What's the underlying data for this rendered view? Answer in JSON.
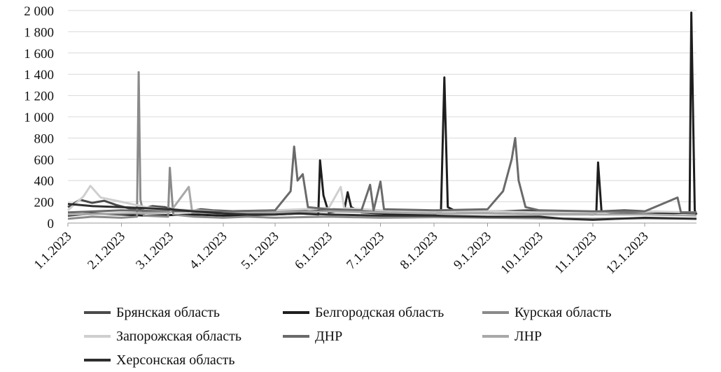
{
  "chart_data": {
    "type": "line",
    "title": "",
    "xlabel": "",
    "ylabel": "",
    "ylim": [
      0,
      2000
    ],
    "yticks": [
      0,
      200,
      400,
      600,
      800,
      1000,
      1200,
      1400,
      1600,
      1800,
      2000
    ],
    "ytick_labels": [
      "0",
      "200",
      "400",
      "600",
      "800",
      "1 000",
      "1 200",
      "1 400",
      "1 600",
      "1 800",
      "2 000"
    ],
    "x_range": [
      "2023-01-01",
      "2023-12-31"
    ],
    "xticks": [
      "2023-01-01",
      "2023-02-01",
      "2023-03-01",
      "2023-04-01",
      "2023-05-01",
      "2023-06-01",
      "2023-07-01",
      "2023-08-01",
      "2023-09-01",
      "2023-10-01",
      "2023-11-01",
      "2023-12-01"
    ],
    "xtick_labels": [
      "1.1.2023",
      "2.1.2023",
      "3.1.2023",
      "4.1.2023",
      "5.1.2023",
      "6.1.2023",
      "7.1.2023",
      "8.1.2023",
      "9.1.2023",
      "10.1.2023",
      "11.1.2023",
      "12.1.2023"
    ],
    "grid": "horizontal",
    "legend_position": "bottom",
    "series": [
      {
        "name": "Брянская область",
        "color": "#4a4a4a",
        "values": [
          [
            "2023-01-01",
            150
          ],
          [
            "2023-01-08",
            220
          ],
          [
            "2023-01-15",
            190
          ],
          [
            "2023-01-22",
            210
          ],
          [
            "2023-01-29",
            170
          ],
          [
            "2023-02-05",
            140
          ],
          [
            "2023-02-12",
            130
          ],
          [
            "2023-02-19",
            160
          ],
          [
            "2023-02-26",
            150
          ],
          [
            "2023-03-05",
            120
          ],
          [
            "2023-03-12",
            110
          ],
          [
            "2023-03-19",
            130
          ],
          [
            "2023-03-26",
            120
          ],
          [
            "2023-04-09",
            110
          ],
          [
            "2023-04-23",
            100
          ],
          [
            "2023-05-07",
            120
          ],
          [
            "2023-05-21",
            110
          ],
          [
            "2023-06-04",
            130
          ],
          [
            "2023-06-18",
            120
          ],
          [
            "2023-07-02",
            110
          ],
          [
            "2023-07-16",
            120
          ],
          [
            "2023-07-30",
            110
          ],
          [
            "2023-08-13",
            120
          ],
          [
            "2023-08-27",
            110
          ],
          [
            "2023-09-10",
            110
          ],
          [
            "2023-09-24",
            120
          ],
          [
            "2023-10-08",
            110
          ],
          [
            "2023-10-22",
            100
          ],
          [
            "2023-11-05",
            110
          ],
          [
            "2023-11-19",
            120
          ],
          [
            "2023-12-03",
            110
          ],
          [
            "2023-12-17",
            100
          ],
          [
            "2023-12-31",
            90
          ]
        ]
      },
      {
        "name": "Белгородская область",
        "color": "#1e1e1e",
        "values": [
          [
            "2023-01-01",
            70
          ],
          [
            "2023-01-15",
            90
          ],
          [
            "2023-02-01",
            80
          ],
          [
            "2023-02-15",
            70
          ],
          [
            "2023-03-01",
            75
          ],
          [
            "2023-03-15",
            80
          ],
          [
            "2023-04-01",
            70
          ],
          [
            "2023-04-15",
            75
          ],
          [
            "2023-05-01",
            80
          ],
          [
            "2023-05-15",
            90
          ],
          [
            "2023-05-26",
            80
          ],
          [
            "2023-05-27",
            590
          ],
          [
            "2023-05-29",
            260
          ],
          [
            "2023-06-01",
            100
          ],
          [
            "2023-06-10",
            120
          ],
          [
            "2023-06-12",
            290
          ],
          [
            "2023-06-14",
            150
          ],
          [
            "2023-06-20",
            100
          ],
          [
            "2023-07-01",
            90
          ],
          [
            "2023-07-15",
            80
          ],
          [
            "2023-08-01",
            85
          ],
          [
            "2023-08-05",
            100
          ],
          [
            "2023-08-07",
            1370
          ],
          [
            "2023-08-09",
            150
          ],
          [
            "2023-08-15",
            100
          ],
          [
            "2023-09-01",
            100
          ],
          [
            "2023-09-15",
            95
          ],
          [
            "2023-10-01",
            100
          ],
          [
            "2023-10-15",
            90
          ],
          [
            "2023-11-01",
            80
          ],
          [
            "2023-11-03",
            100
          ],
          [
            "2023-11-04",
            570
          ],
          [
            "2023-11-06",
            110
          ],
          [
            "2023-11-15",
            90
          ],
          [
            "2023-12-01",
            85
          ],
          [
            "2023-12-15",
            90
          ],
          [
            "2023-12-27",
            100
          ],
          [
            "2023-12-28",
            1980
          ],
          [
            "2023-12-30",
            120
          ],
          [
            "2023-12-31",
            80
          ]
        ]
      },
      {
        "name": "Курская область",
        "color": "#8a8a8a",
        "values": [
          [
            "2023-01-01",
            40
          ],
          [
            "2023-01-15",
            60
          ],
          [
            "2023-02-01",
            50
          ],
          [
            "2023-02-10",
            60
          ],
          [
            "2023-02-11",
            1420
          ],
          [
            "2023-02-12",
            220
          ],
          [
            "2023-02-14",
            70
          ],
          [
            "2023-02-28",
            60
          ],
          [
            "2023-03-01",
            520
          ],
          [
            "2023-03-03",
            80
          ],
          [
            "2023-03-15",
            60
          ],
          [
            "2023-04-01",
            50
          ],
          [
            "2023-04-15",
            60
          ],
          [
            "2023-05-01",
            50
          ],
          [
            "2023-05-15",
            55
          ],
          [
            "2023-06-01",
            60
          ],
          [
            "2023-07-01",
            50
          ],
          [
            "2023-08-01",
            55
          ],
          [
            "2023-09-01",
            50
          ],
          [
            "2023-10-01",
            45
          ],
          [
            "2023-11-01",
            40
          ],
          [
            "2023-12-01",
            45
          ],
          [
            "2023-12-31",
            40
          ]
        ]
      },
      {
        "name": "Запорожская область",
        "color": "#cfcfcf",
        "values": [
          [
            "2023-01-01",
            120
          ],
          [
            "2023-01-10",
            250
          ],
          [
            "2023-01-14",
            350
          ],
          [
            "2023-01-20",
            240
          ],
          [
            "2023-02-01",
            200
          ],
          [
            "2023-02-15",
            150
          ],
          [
            "2023-03-01",
            130
          ],
          [
            "2023-03-15",
            120
          ],
          [
            "2023-04-01",
            110
          ],
          [
            "2023-05-01",
            120
          ],
          [
            "2023-06-01",
            140
          ],
          [
            "2023-06-08",
            340
          ],
          [
            "2023-06-10",
            140
          ],
          [
            "2023-07-01",
            120
          ],
          [
            "2023-08-01",
            110
          ],
          [
            "2023-09-01",
            110
          ],
          [
            "2023-10-01",
            100
          ],
          [
            "2023-11-01",
            100
          ],
          [
            "2023-12-01",
            110
          ],
          [
            "2023-12-31",
            100
          ]
        ]
      },
      {
        "name": "ДНР",
        "color": "#6a6a6a",
        "values": [
          [
            "2023-01-01",
            100
          ],
          [
            "2023-02-01",
            120
          ],
          [
            "2023-03-01",
            110
          ],
          [
            "2023-04-01",
            110
          ],
          [
            "2023-05-01",
            120
          ],
          [
            "2023-05-10",
            300
          ],
          [
            "2023-05-12",
            720
          ],
          [
            "2023-05-14",
            400
          ],
          [
            "2023-05-17",
            460
          ],
          [
            "2023-05-20",
            150
          ],
          [
            "2023-06-01",
            130
          ],
          [
            "2023-06-20",
            120
          ],
          [
            "2023-06-25",
            360
          ],
          [
            "2023-06-27",
            120
          ],
          [
            "2023-07-01",
            390
          ],
          [
            "2023-07-03",
            130
          ],
          [
            "2023-08-01",
            120
          ],
          [
            "2023-09-01",
            130
          ],
          [
            "2023-09-10",
            300
          ],
          [
            "2023-09-15",
            600
          ],
          [
            "2023-09-17",
            800
          ],
          [
            "2023-09-19",
            400
          ],
          [
            "2023-09-23",
            150
          ],
          [
            "2023-10-01",
            120
          ],
          [
            "2023-11-01",
            110
          ],
          [
            "2023-12-01",
            110
          ],
          [
            "2023-12-20",
            240
          ],
          [
            "2023-12-22",
            100
          ],
          [
            "2023-12-31",
            100
          ]
        ]
      },
      {
        "name": "ЛНР",
        "color": "#a8a8a8",
        "values": [
          [
            "2023-01-01",
            80
          ],
          [
            "2023-02-01",
            90
          ],
          [
            "2023-03-01",
            100
          ],
          [
            "2023-03-12",
            340
          ],
          [
            "2023-03-14",
            100
          ],
          [
            "2023-04-01",
            90
          ],
          [
            "2023-05-01",
            100
          ],
          [
            "2023-06-01",
            110
          ],
          [
            "2023-07-01",
            100
          ],
          [
            "2023-08-01",
            90
          ],
          [
            "2023-09-01",
            90
          ],
          [
            "2023-10-01",
            80
          ],
          [
            "2023-11-01",
            80
          ],
          [
            "2023-12-01",
            80
          ],
          [
            "2023-12-31",
            70
          ]
        ]
      },
      {
        "name": "Херсонская область",
        "color": "#2e2e2e",
        "values": [
          [
            "2023-01-01",
            180
          ],
          [
            "2023-01-15",
            160
          ],
          [
            "2023-02-01",
            150
          ],
          [
            "2023-02-15",
            140
          ],
          [
            "2023-03-01",
            130
          ],
          [
            "2023-03-15",
            110
          ],
          [
            "2023-04-01",
            90
          ],
          [
            "2023-04-15",
            80
          ],
          [
            "2023-05-01",
            80
          ],
          [
            "2023-05-15",
            90
          ],
          [
            "2023-06-01",
            80
          ],
          [
            "2023-07-01",
            70
          ],
          [
            "2023-08-01",
            70
          ],
          [
            "2023-09-01",
            60
          ],
          [
            "2023-10-01",
            60
          ],
          [
            "2023-10-15",
            40
          ],
          [
            "2023-11-01",
            30
          ],
          [
            "2023-11-15",
            40
          ],
          [
            "2023-12-01",
            50
          ],
          [
            "2023-12-31",
            40
          ]
        ]
      }
    ]
  }
}
